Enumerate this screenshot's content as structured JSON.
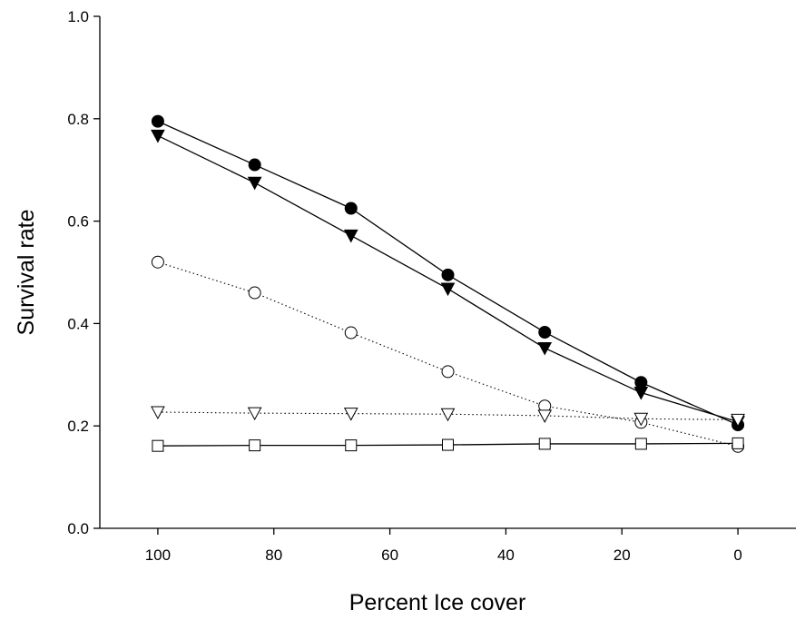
{
  "chart_data": {
    "type": "line",
    "title": "",
    "xlabel": "Percent Ice cover",
    "ylabel": "Survival rate",
    "xlim": [
      110,
      -10
    ],
    "ylim": [
      0.0,
      1.0
    ],
    "x_reversed": true,
    "xticks": [
      100,
      80,
      60,
      40,
      20,
      0
    ],
    "xtick_labels": [
      "100",
      "80",
      "60",
      "40",
      "20",
      "0"
    ],
    "yticks": [
      0.0,
      0.2,
      0.4,
      0.6,
      0.8,
      1.0
    ],
    "ytick_labels": [
      "0.0",
      "0.2",
      "0.4",
      "0.6",
      "0.8",
      "1.0"
    ],
    "grid": false,
    "legend": "none",
    "x": [
      100,
      83.3,
      66.7,
      50,
      33.3,
      16.7,
      0
    ],
    "series": [
      {
        "marker": "filled-circle",
        "line": "solid",
        "color": "#000000",
        "values": [
          0.795,
          0.71,
          0.625,
          0.495,
          0.383,
          0.285,
          0.202
        ]
      },
      {
        "marker": "filled-triangle-down",
        "line": "solid",
        "color": "#000000",
        "values": [
          0.767,
          0.675,
          0.572,
          0.468,
          0.352,
          0.265,
          0.208
        ]
      },
      {
        "marker": "open-circle",
        "line": "dotted",
        "color": "#000000",
        "values": [
          0.52,
          0.46,
          0.382,
          0.306,
          0.239,
          0.207,
          0.16
        ]
      },
      {
        "marker": "open-triangle-down",
        "line": "dotted",
        "color": "#000000",
        "values": [
          0.227,
          0.225,
          0.224,
          0.223,
          0.22,
          0.214,
          0.212
        ]
      },
      {
        "marker": "open-square",
        "line": "solid",
        "color": "#000000",
        "values": [
          0.161,
          0.162,
          0.162,
          0.163,
          0.165,
          0.165,
          0.166
        ]
      }
    ]
  }
}
